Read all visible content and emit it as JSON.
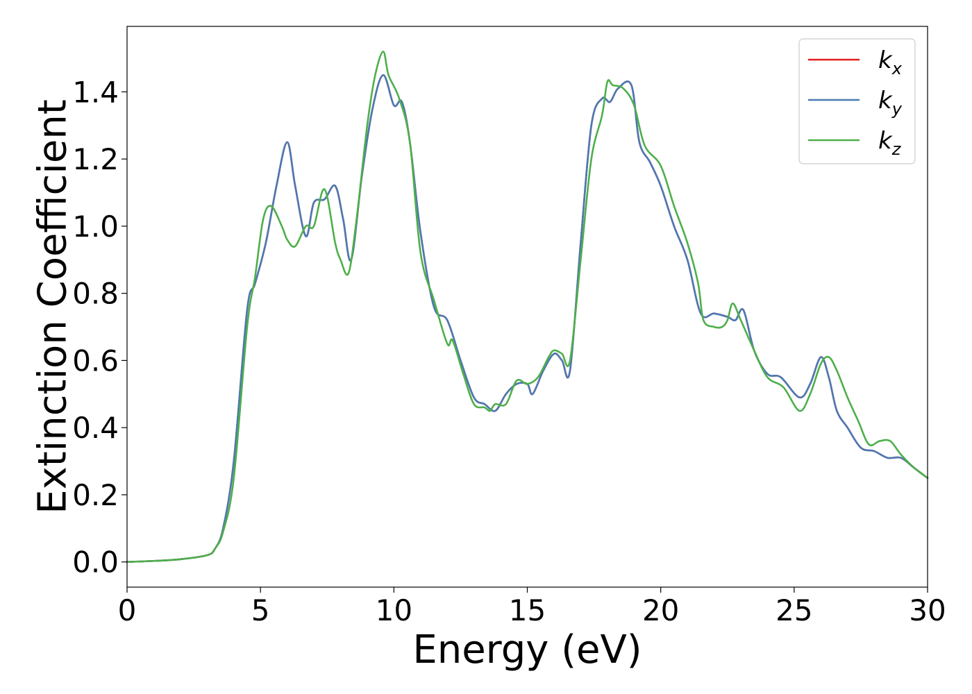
{
  "chart_data": {
    "type": "line",
    "title": "",
    "xlabel": "Energy (eV)",
    "ylabel": "Extinction Coefficient",
    "xlim": [
      0,
      30
    ],
    "ylim": [
      -0.075,
      1.595
    ],
    "xticks": [
      0,
      5,
      10,
      15,
      20,
      25,
      30
    ],
    "xtick_labels": [
      "0",
      "5",
      "10",
      "15",
      "20",
      "25",
      "30"
    ],
    "yticks": [
      0.0,
      0.2,
      0.4,
      0.6,
      0.8,
      1.0,
      1.2,
      1.4
    ],
    "ytick_labels": [
      "0.0",
      "0.2",
      "0.4",
      "0.6",
      "0.8",
      "1.0",
      "1.2",
      "1.4"
    ],
    "grid": false,
    "legend_position": "top-right",
    "series": [
      {
        "name": "k",
        "subscript": "x",
        "color": "#e41a1c",
        "x": [
          0,
          1,
          2,
          3,
          3.3,
          3.6,
          4.0,
          4.5,
          4.8,
          5.2,
          5.6,
          6.0,
          6.3,
          6.7,
          7.0,
          7.4,
          7.8,
          8.1,
          8.4,
          8.8,
          9.2,
          9.6,
          10.0,
          10.3,
          10.6,
          11.0,
          11.5,
          12.0,
          12.5,
          13.0,
          13.4,
          13.8,
          14.2,
          14.6,
          15.0,
          15.2,
          15.6,
          16.0,
          16.3,
          16.6,
          17.0,
          17.4,
          17.8,
          18.1,
          18.4,
          18.9,
          19.2,
          19.6,
          20.0,
          20.5,
          21.0,
          21.5,
          22.0,
          22.5,
          22.8,
          23.1,
          23.5,
          24.0,
          24.5,
          25.2,
          25.6,
          26.0,
          26.3,
          26.6,
          27.0,
          27.5,
          28.0,
          28.5,
          29.0,
          29.5,
          30.0
        ],
        "values": [
          0.0,
          0.003,
          0.008,
          0.02,
          0.04,
          0.1,
          0.3,
          0.75,
          0.83,
          0.95,
          1.12,
          1.25,
          1.12,
          0.97,
          1.07,
          1.08,
          1.12,
          1.02,
          0.9,
          1.15,
          1.35,
          1.45,
          1.36,
          1.37,
          1.25,
          0.98,
          0.76,
          0.72,
          0.6,
          0.49,
          0.47,
          0.45,
          0.5,
          0.53,
          0.53,
          0.5,
          0.57,
          0.62,
          0.6,
          0.57,
          0.95,
          1.3,
          1.38,
          1.37,
          1.41,
          1.42,
          1.25,
          1.19,
          1.12,
          1.0,
          0.9,
          0.74,
          0.74,
          0.73,
          0.72,
          0.75,
          0.63,
          0.56,
          0.55,
          0.49,
          0.53,
          0.61,
          0.55,
          0.45,
          0.4,
          0.34,
          0.33,
          0.31,
          0.31,
          0.28,
          0.25
        ]
      },
      {
        "name": "k",
        "subscript": "y",
        "color": "#4a7ab5",
        "x": [
          0,
          1,
          2,
          3,
          3.3,
          3.6,
          4.0,
          4.5,
          4.8,
          5.2,
          5.6,
          6.0,
          6.3,
          6.7,
          7.0,
          7.4,
          7.8,
          8.1,
          8.4,
          8.8,
          9.2,
          9.6,
          10.0,
          10.3,
          10.6,
          11.0,
          11.5,
          12.0,
          12.5,
          13.0,
          13.4,
          13.8,
          14.2,
          14.6,
          15.0,
          15.2,
          15.6,
          16.0,
          16.3,
          16.6,
          17.0,
          17.4,
          17.8,
          18.1,
          18.4,
          18.9,
          19.2,
          19.6,
          20.0,
          20.5,
          21.0,
          21.5,
          22.0,
          22.5,
          22.8,
          23.1,
          23.5,
          24.0,
          24.5,
          25.2,
          25.6,
          26.0,
          26.3,
          26.6,
          27.0,
          27.5,
          28.0,
          28.5,
          29.0,
          29.5,
          30.0
        ],
        "values": [
          0.0,
          0.003,
          0.008,
          0.02,
          0.04,
          0.1,
          0.3,
          0.75,
          0.83,
          0.95,
          1.12,
          1.25,
          1.12,
          0.97,
          1.07,
          1.08,
          1.12,
          1.02,
          0.9,
          1.15,
          1.35,
          1.45,
          1.36,
          1.37,
          1.25,
          0.98,
          0.76,
          0.72,
          0.6,
          0.49,
          0.47,
          0.45,
          0.5,
          0.53,
          0.53,
          0.5,
          0.57,
          0.62,
          0.6,
          0.57,
          0.95,
          1.3,
          1.38,
          1.37,
          1.41,
          1.42,
          1.25,
          1.19,
          1.12,
          1.0,
          0.9,
          0.74,
          0.74,
          0.73,
          0.72,
          0.75,
          0.63,
          0.56,
          0.55,
          0.49,
          0.53,
          0.61,
          0.55,
          0.45,
          0.4,
          0.34,
          0.33,
          0.31,
          0.31,
          0.28,
          0.25
        ]
      },
      {
        "name": "k",
        "subscript": "z",
        "color": "#4daf4a",
        "x": [
          0,
          1,
          2,
          3,
          3.3,
          3.6,
          4.0,
          4.5,
          4.8,
          5.1,
          5.4,
          5.8,
          6.0,
          6.3,
          6.7,
          7.0,
          7.4,
          7.8,
          8.0,
          8.3,
          8.6,
          9.0,
          9.3,
          9.6,
          9.8,
          10.2,
          10.6,
          11.0,
          11.5,
          12.0,
          12.2,
          12.6,
          13.0,
          13.4,
          13.6,
          13.8,
          14.2,
          14.6,
          15.0,
          15.4,
          15.8,
          16.0,
          16.3,
          16.6,
          17.0,
          17.4,
          17.8,
          18.0,
          18.2,
          18.6,
          19.0,
          19.4,
          20.0,
          20.5,
          21.0,
          21.4,
          21.6,
          22.0,
          22.3,
          22.5,
          22.7,
          23.0,
          23.5,
          24.0,
          24.6,
          25.2,
          25.6,
          26.0,
          26.3,
          26.6,
          27.0,
          27.4,
          27.8,
          28.2,
          28.6,
          29.0,
          29.5,
          30.0
        ],
        "values": [
          0.0,
          0.003,
          0.008,
          0.02,
          0.04,
          0.09,
          0.25,
          0.7,
          0.85,
          1.02,
          1.06,
          1.0,
          0.96,
          0.94,
          1.0,
          1.0,
          1.11,
          0.95,
          0.9,
          0.86,
          1.02,
          1.3,
          1.45,
          1.52,
          1.45,
          1.38,
          1.25,
          0.92,
          0.78,
          0.65,
          0.66,
          0.56,
          0.47,
          0.46,
          0.45,
          0.47,
          0.47,
          0.54,
          0.53,
          0.55,
          0.61,
          0.63,
          0.62,
          0.6,
          0.9,
          1.2,
          1.33,
          1.43,
          1.42,
          1.41,
          1.36,
          1.24,
          1.18,
          1.06,
          0.95,
          0.83,
          0.72,
          0.7,
          0.7,
          0.72,
          0.77,
          0.72,
          0.63,
          0.55,
          0.52,
          0.45,
          0.5,
          0.59,
          0.61,
          0.57,
          0.49,
          0.42,
          0.35,
          0.36,
          0.36,
          0.32,
          0.28,
          0.25
        ]
      }
    ]
  }
}
